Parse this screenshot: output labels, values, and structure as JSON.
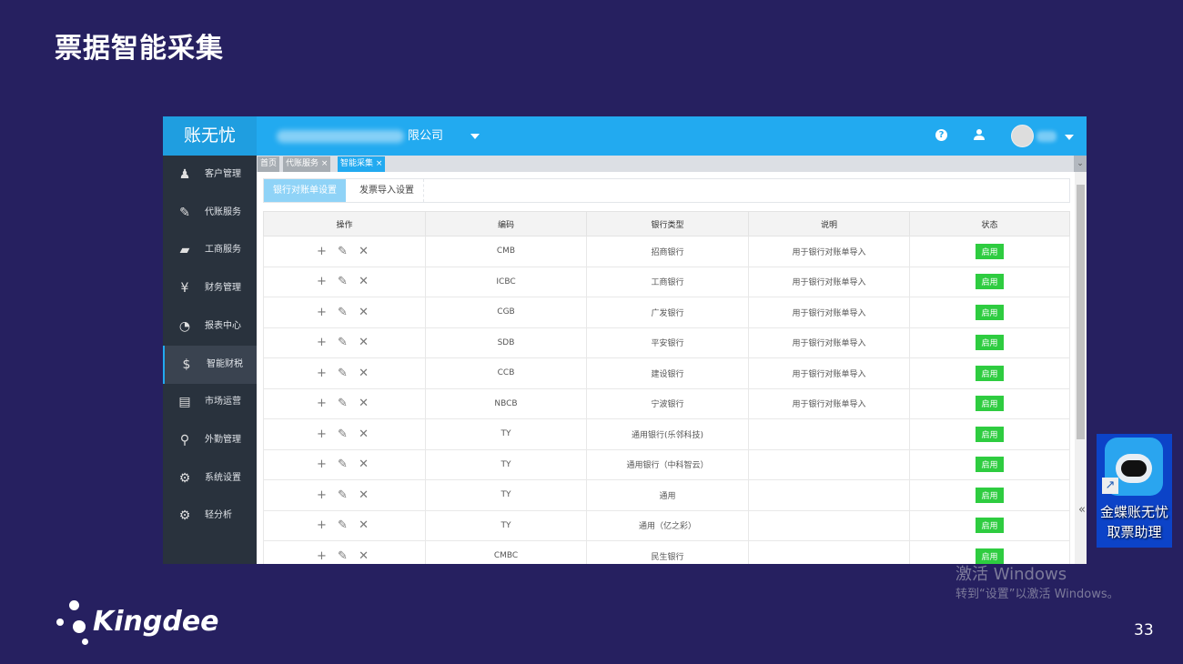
{
  "slide": {
    "title": "票据智能采集",
    "page_number": "33",
    "brand": "Kingdee"
  },
  "app": {
    "logo": "账无忧",
    "company": "限公司",
    "help_icon": "?"
  },
  "sidebar": {
    "items": [
      {
        "label": "客户管理",
        "icon": "user-icon"
      },
      {
        "label": "代账服务",
        "icon": "pen-icon"
      },
      {
        "label": "工商服务",
        "icon": "briefcase-icon"
      },
      {
        "label": "财务管理",
        "icon": "ledger-icon"
      },
      {
        "label": "报表中心",
        "icon": "pie-icon"
      },
      {
        "label": "智能财税",
        "icon": "money-bag-icon",
        "active": true
      },
      {
        "label": "市场运营",
        "icon": "monitor-chart-icon"
      },
      {
        "label": "外勤管理",
        "icon": "location-user-icon"
      },
      {
        "label": "系统设置",
        "icon": "gear-icon"
      },
      {
        "label": "轻分析",
        "icon": "gear-icon"
      }
    ]
  },
  "tabs": [
    {
      "label": "首页"
    },
    {
      "label": "代账服务 ×"
    },
    {
      "label": "智能采集 ×",
      "active": true
    }
  ],
  "subtabs": [
    "银行对账单设置",
    "发票导入设置"
  ],
  "table": {
    "headers": [
      "操作",
      "编码",
      "银行类型",
      "说明",
      "状态"
    ],
    "ops": "+ ✎ ✕",
    "rows": [
      {
        "code": "CMB",
        "bank": "招商银行",
        "desc": "用于银行对账单导入",
        "status": "启用"
      },
      {
        "code": "ICBC",
        "bank": "工商银行",
        "desc": "用于银行对账单导入",
        "status": "启用"
      },
      {
        "code": "CGB",
        "bank": "广发银行",
        "desc": "用于银行对账单导入",
        "status": "启用"
      },
      {
        "code": "SDB",
        "bank": "平安银行",
        "desc": "用于银行对账单导入",
        "status": "启用"
      },
      {
        "code": "CCB",
        "bank": "建设银行",
        "desc": "用于银行对账单导入",
        "status": "启用"
      },
      {
        "code": "NBCB",
        "bank": "宁波银行",
        "desc": "用于银行对账单导入",
        "status": "启用"
      },
      {
        "code": "TY",
        "bank": "通用银行(乐邻科技)",
        "desc": "",
        "status": "启用"
      },
      {
        "code": "TY",
        "bank": "通用银行（中科智云）",
        "desc": "",
        "status": "启用"
      },
      {
        "code": "TY",
        "bank": "通用",
        "desc": "",
        "status": "启用"
      },
      {
        "code": "TY",
        "bank": "通用（亿之彩）",
        "desc": "",
        "status": "启用"
      },
      {
        "code": "CMBC",
        "bank": "民生银行",
        "desc": "",
        "status": "启用"
      }
    ]
  },
  "desktop_icon": {
    "label_line1": "金蝶账无忧",
    "label_line2": "取票助理"
  },
  "watermark": {
    "line1": "激活 Windows",
    "line2": "转到“设置”以激活 Windows。"
  },
  "colors": {
    "header": "#22aaf0",
    "sidebar": "#29323d",
    "enabled": "#2ecc40",
    "slide_bg": "#262060"
  }
}
